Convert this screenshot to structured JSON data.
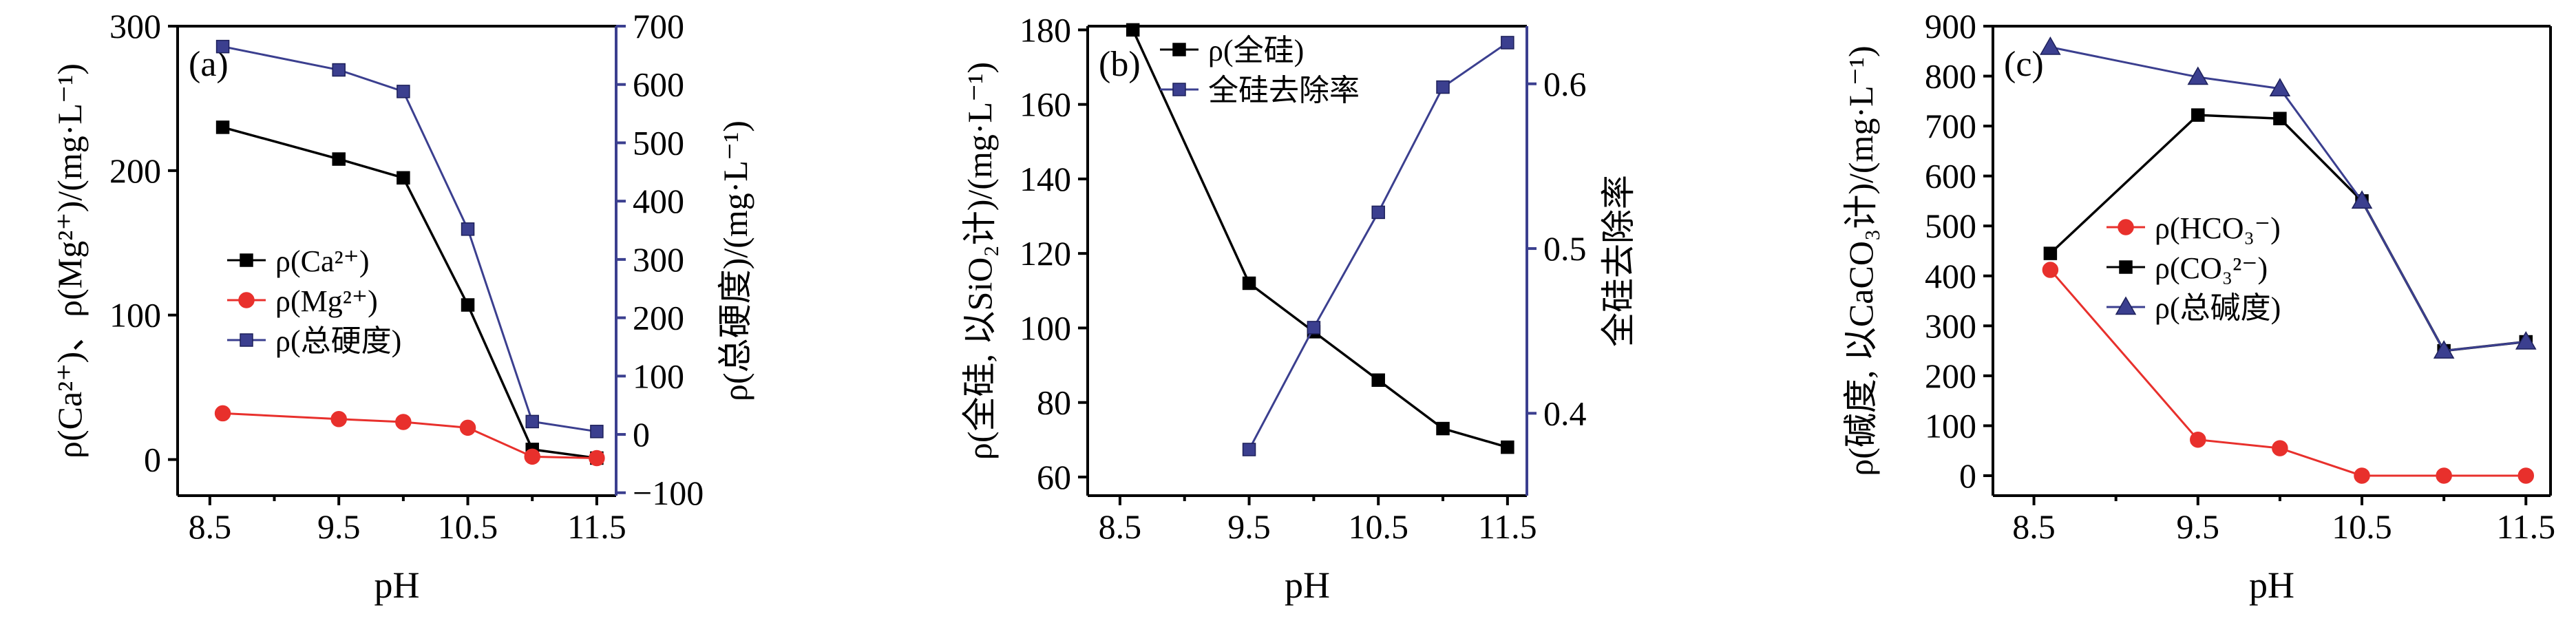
{
  "chart_data": [
    {
      "type": "line",
      "panel_label": "(a)",
      "xlabel": "pH",
      "ylabel": "ρ(Ca²⁺)、ρ(Mg²⁺)/(mg·L⁻¹)",
      "y2label": "ρ(总硬度)/(mg·L⁻¹)",
      "xlim": [
        8.25,
        11.65
      ],
      "ylim": [
        -25,
        300
      ],
      "y2lim": [
        -105,
        700
      ],
      "xticks": [
        "8.5",
        "9.5",
        "10.5",
        "11.5"
      ],
      "yticks": [
        "0",
        "100",
        "200",
        "300"
      ],
      "y2ticks": [
        "−100",
        "0",
        "100",
        "200",
        "300",
        "400",
        "500",
        "600",
        "700"
      ],
      "legend": "left-middle",
      "series": [
        {
          "name": "ρ(Ca²⁺)",
          "axis": "left",
          "color": "#000000",
          "marker": "square",
          "x": [
            8.6,
            9.5,
            10.0,
            10.5,
            11.0,
            11.5
          ],
          "y": [
            230,
            208,
            195,
            107,
            7,
            1
          ]
        },
        {
          "name": "ρ(Mg²⁺)",
          "axis": "left",
          "color": "#e8302c",
          "marker": "circle",
          "x": [
            8.6,
            9.5,
            10.0,
            10.5,
            11.0,
            11.5
          ],
          "y": [
            32,
            28,
            26,
            22,
            2,
            1
          ]
        },
        {
          "name": "ρ(总硬度)",
          "axis": "right",
          "color": "#3b3f8f",
          "marker": "square",
          "x": [
            8.6,
            9.5,
            10.0,
            10.5,
            11.0,
            11.5
          ],
          "y": [
            665,
            625,
            588,
            352,
            22,
            5
          ]
        }
      ]
    },
    {
      "type": "line",
      "panel_label": "(b)",
      "xlabel": "pH",
      "ylabel": "ρ(全硅, 以SiO₂计)/(mg·L⁻¹)",
      "y2label": "全硅去除率",
      "xlim": [
        8.25,
        11.65
      ],
      "ylim": [
        55,
        181
      ],
      "y2lim": [
        0.35,
        0.635
      ],
      "xticks": [
        "8.5",
        "9.5",
        "10.5",
        "11.5"
      ],
      "yticks": [
        "60",
        "80",
        "100",
        "120",
        "140",
        "160",
        "180"
      ],
      "y2ticks": [
        "0.4",
        "0.5",
        "0.6"
      ],
      "legend": "top-left",
      "series": [
        {
          "name": "ρ(全硅)",
          "axis": "left",
          "color": "#000000",
          "marker": "square",
          "x": [
            8.6,
            9.5,
            10.0,
            10.5,
            11.0,
            11.5
          ],
          "y": [
            180,
            112,
            99,
            86,
            73,
            68
          ]
        },
        {
          "name": "全硅去除率",
          "axis": "right",
          "color": "#3b3f8f",
          "marker": "square",
          "x": [
            9.5,
            10.0,
            10.5,
            11.0,
            11.5
          ],
          "y": [
            0.378,
            0.452,
            0.522,
            0.598,
            0.625
          ]
        }
      ]
    },
    {
      "type": "line",
      "panel_label": "(c)",
      "xlabel": "pH",
      "ylabel": "ρ(碱度, 以CaCO₃计)/(mg·L⁻¹)",
      "xlim": [
        8.25,
        11.65
      ],
      "ylim": [
        -40,
        900
      ],
      "xticks": [
        "8.5",
        "9.5",
        "10.5",
        "11.5"
      ],
      "yticks": [
        "0",
        "100",
        "200",
        "300",
        "400",
        "500",
        "600",
        "700",
        "800",
        "900"
      ],
      "legend": "left-middle",
      "series": [
        {
          "name": "ρ(HCO₃⁻)",
          "color": "#e8302c",
          "marker": "circle",
          "x": [
            8.6,
            9.5,
            10.0,
            10.5,
            11.0,
            11.5
          ],
          "y": [
            412,
            72,
            55,
            0,
            0,
            0
          ]
        },
        {
          "name": "ρ(CO₃²⁻)",
          "color": "#000000",
          "marker": "square",
          "x": [
            8.6,
            9.5,
            10.0,
            10.5,
            11.0,
            11.5
          ],
          "y": [
            445,
            722,
            715,
            550,
            250,
            268
          ]
        },
        {
          "name": "ρ(总碱度)",
          "color": "#3b3f8f",
          "marker": "triangle",
          "x": [
            8.6,
            9.5,
            10.0,
            10.5,
            11.0,
            11.5
          ],
          "y": [
            858,
            798,
            775,
            550,
            250,
            268
          ]
        }
      ]
    }
  ]
}
